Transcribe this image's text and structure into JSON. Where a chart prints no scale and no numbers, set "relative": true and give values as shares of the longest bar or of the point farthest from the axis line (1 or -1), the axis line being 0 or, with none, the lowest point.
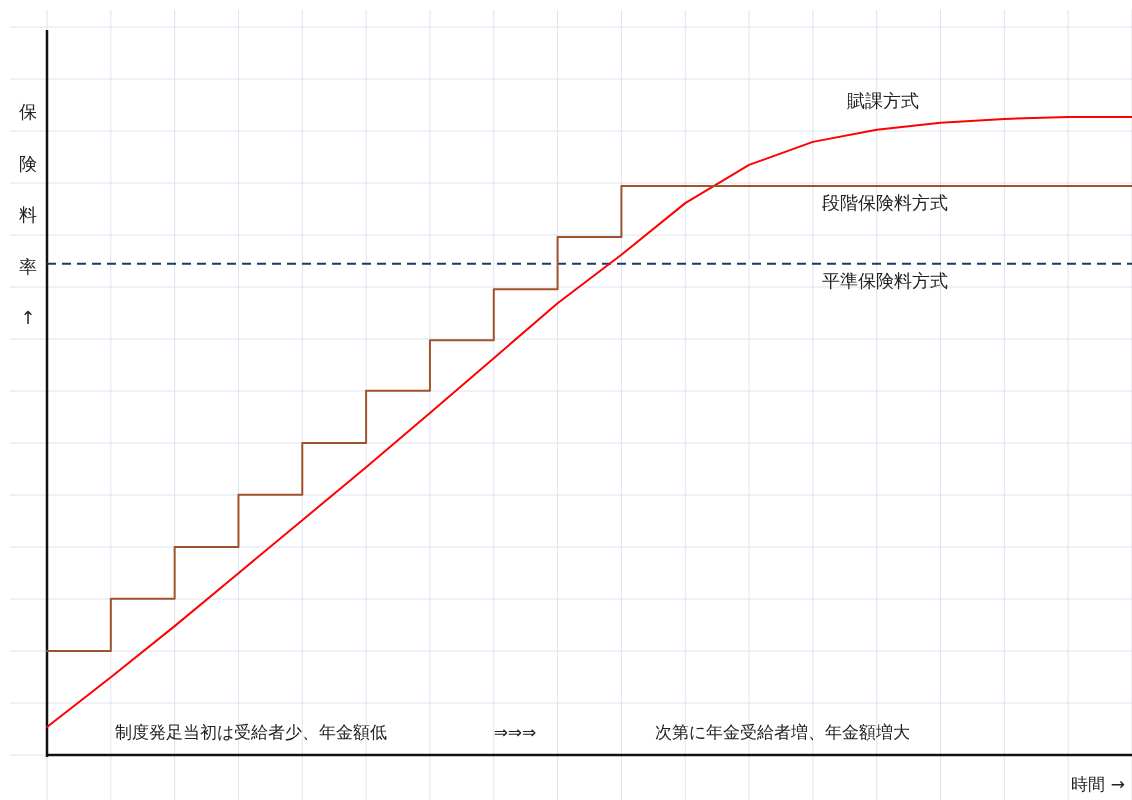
{
  "chart_data": {
    "type": "line",
    "relative": true,
    "ylabel": "保険料率↑",
    "xlabel": "時間 →",
    "categories": [
      null,
      null,
      null,
      null,
      null,
      null,
      null,
      null,
      null,
      null,
      null,
      null,
      null,
      null,
      null,
      null,
      null,
      null
    ],
    "series": [
      {
        "name": "賦課方式",
        "color": "#ff0000",
        "values": [
          0.044,
          0.122,
          0.202,
          0.285,
          0.368,
          0.451,
          0.536,
          0.622,
          0.708,
          0.784,
          0.865,
          0.925,
          0.961,
          0.98,
          0.991,
          0.997,
          1,
          1
        ]
      },
      {
        "name": "段階保険料方式",
        "type": "step",
        "color": "#a0522d",
        "values": [
          0.163,
          0.245,
          0.326,
          0.408,
          0.489,
          0.571,
          0.65,
          0.73,
          0.812,
          0.892,
          0.892,
          0.892,
          0.892,
          0.892,
          0.892,
          0.892,
          0.892,
          0.892
        ]
      }
    ],
    "ref_lines": [
      {
        "axis": "y",
        "value": 0.77,
        "label": "平準保険料方式",
        "color": "#1f3864",
        "line_style": "dashed"
      }
    ],
    "annotations": [
      "制度発足当初は受給者少、年金額低",
      "⇒⇒⇒",
      "次第に年金受給者増、年金額増大"
    ],
    "grid": true
  }
}
